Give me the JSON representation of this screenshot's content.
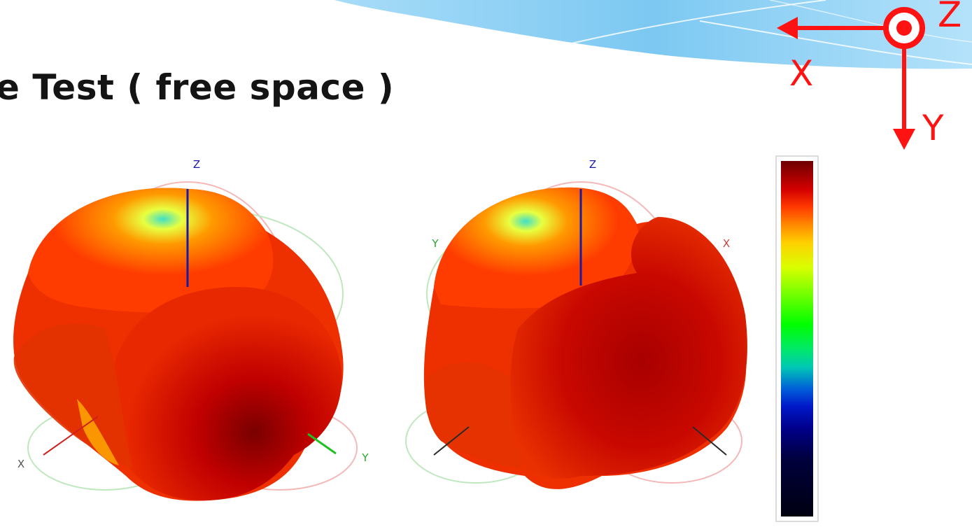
{
  "title": "e Test ( free space )",
  "plots": [
    {
      "axis_labels": {
        "z": "Z",
        "x": "X",
        "y": "Y"
      }
    },
    {
      "axis_labels": {
        "z": "Z",
        "y": "Y",
        "x": "X"
      }
    }
  ],
  "compass": {
    "z_label": "Z",
    "x_label": "X",
    "y_label": "Y"
  },
  "colors": {
    "surface_high": "#c00000",
    "surface_mid": "#ff6a00",
    "surface_low": "#ffe000",
    "minimum_spot": "#40e0c8",
    "compass_red": "#ff1212",
    "banner_blue": "#8fd0f5"
  }
}
